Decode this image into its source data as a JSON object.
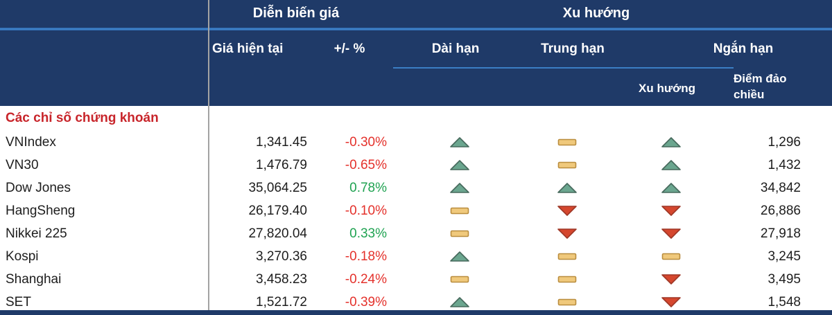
{
  "header": {
    "group_price": "Diễn biến giá",
    "group_trend": "Xu hướng",
    "col_current_price": "Giá hiện tại",
    "col_change_pct": "+/- %",
    "col_long_term": "Dài hạn",
    "col_mid_term": "Trung hạn",
    "col_short_term": "Ngắn hạn",
    "sub_trend": "Xu hướng",
    "sub_reversal_point": "Điểm đảo chiều"
  },
  "section_title": "Các chỉ số chứng khoán",
  "rows": [
    {
      "label": "VNIndex",
      "price": "1,341.45",
      "change": "-0.30%",
      "long": "up",
      "mid": "flat",
      "short": "up",
      "reversal": "1,296"
    },
    {
      "label": "VN30",
      "price": "1,476.79",
      "change": "-0.65%",
      "long": "up",
      "mid": "flat",
      "short": "up",
      "reversal": "1,432"
    },
    {
      "label": "Dow Jones",
      "price": "35,064.25",
      "change": "0.78%",
      "long": "up",
      "mid": "up",
      "short": "up",
      "reversal": "34,842"
    },
    {
      "label": "HangSheng",
      "price": "26,179.40",
      "change": "-0.10%",
      "long": "flat",
      "mid": "down",
      "short": "down",
      "reversal": "26,886"
    },
    {
      "label": "Nikkei 225",
      "price": "27,820.04",
      "change": "0.33%",
      "long": "flat",
      "mid": "down",
      "short": "down",
      "reversal": "27,918"
    },
    {
      "label": "Kospi",
      "price": "3,270.36",
      "change": "-0.18%",
      "long": "up",
      "mid": "flat",
      "short": "flat",
      "reversal": "3,245"
    },
    {
      "label": "Shanghai",
      "price": "3,458.23",
      "change": "-0.24%",
      "long": "flat",
      "mid": "flat",
      "short": "down",
      "reversal": "3,495"
    },
    {
      "label": "SET",
      "price": "1,521.72",
      "change": "-0.39%",
      "long": "up",
      "mid": "flat",
      "short": "down",
      "reversal": "1,548"
    }
  ],
  "icons": {
    "up": "triangle-up",
    "flat": "dash",
    "down": "triangle-down"
  },
  "colors": {
    "header_bg": "#1F3A68",
    "accent_line": "#3B7EC4",
    "section_title": "#C8252B",
    "positive": "#1FA251",
    "negative": "#E4312B",
    "icon_up_fill": "#6BA68F",
    "icon_up_stroke": "#46695C",
    "icon_flat_fill": "#F0C97C",
    "icon_flat_stroke": "#B98D3E",
    "icon_down_fill": "#D5472E",
    "icon_down_stroke": "#9E3726"
  }
}
